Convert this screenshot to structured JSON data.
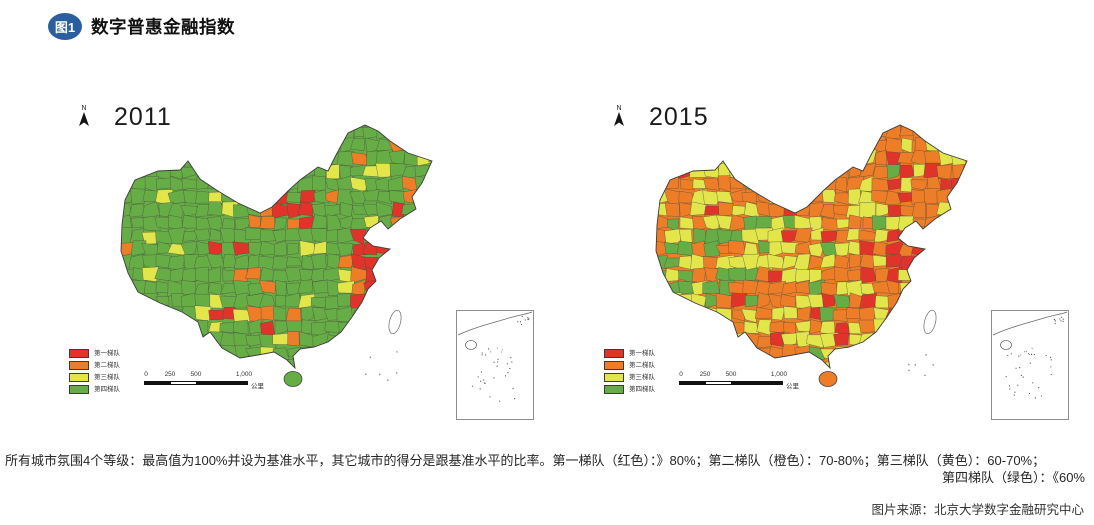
{
  "header": {
    "badge": "图1",
    "badge_color": "#2a5e9e",
    "title": "数字普惠金融指数"
  },
  "tiers": [
    {
      "label": "第一梯队",
      "color": "#e0342b",
      "color_name": "红色",
      "range": "》80%"
    },
    {
      "label": "第二梯队",
      "color": "#ee7d27",
      "color_name": "橙色",
      "range": "70-80%"
    },
    {
      "label": "第三梯队",
      "color": "#e2e64b",
      "color_name": "黄色",
      "range": "60-70%"
    },
    {
      "label": "第四梯队",
      "color": "#66ad46",
      "color_name": "绿色",
      "range": "《60%"
    }
  ],
  "maps": [
    {
      "year": "2011",
      "north_label": "N",
      "dominant_tier": "第四梯队",
      "distribution_estimate": {
        "第一梯队": 0.08,
        "第二梯队": 0.07,
        "第三梯队": 0.13,
        "第四梯队": 0.72
      }
    },
    {
      "year": "2015",
      "north_label": "N",
      "dominant_tier": "第二梯队",
      "distribution_estimate": {
        "第一梯队": 0.15,
        "第二梯队": 0.4,
        "第三梯队": 0.35,
        "第四梯队": 0.1
      }
    }
  ],
  "scale_bar": {
    "ticks": [
      "0",
      "250",
      "500",
      "1,000"
    ],
    "unit": "公里"
  },
  "caption": {
    "line1": "所有城市氛围4个等级：最高值为100%并设为基准水平，其它城市的得分是跟基准水平的比率。第一梯队（红色）：》80%；第二梯队（橙色）：70-80%；第三梯队（黄色）：60-70%；",
    "line2": "第四梯队（绿色）：《60%"
  },
  "source": "图片来源：北京大学数字金融研究中心"
}
